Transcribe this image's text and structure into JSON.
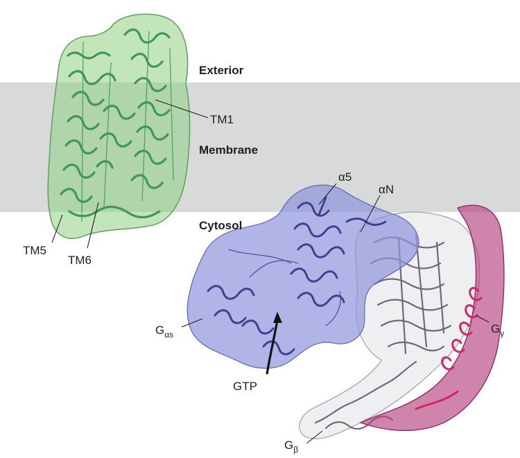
{
  "regions": {
    "exterior": "Exterior",
    "membrane": "Membrane",
    "cytosol": "Cytosol"
  },
  "labels": {
    "tm1": "TM1",
    "tm5": "TM5",
    "tm6": "TM6",
    "alpha5": "α5",
    "alphaN": "αN",
    "g_alpha_s_main": "G",
    "g_alpha_s_sub": "αs",
    "g_gamma_main": "G",
    "g_gamma_sub": "γ",
    "g_beta_main": "G",
    "g_beta_sub": "β",
    "gtp": "GTP"
  },
  "colors": {
    "membrane_band": "#d8d9d9",
    "receptor": "#8fcf85",
    "receptor_helix": "#3f9a4f",
    "g_alpha": "#8f94dc",
    "g_alpha_helix": "#3e418f",
    "g_beta": "#e8e8ec",
    "g_beta_strand": "#6b6b78",
    "g_gamma": "#b5427f",
    "g_gamma_helix": "#d2265c"
  }
}
